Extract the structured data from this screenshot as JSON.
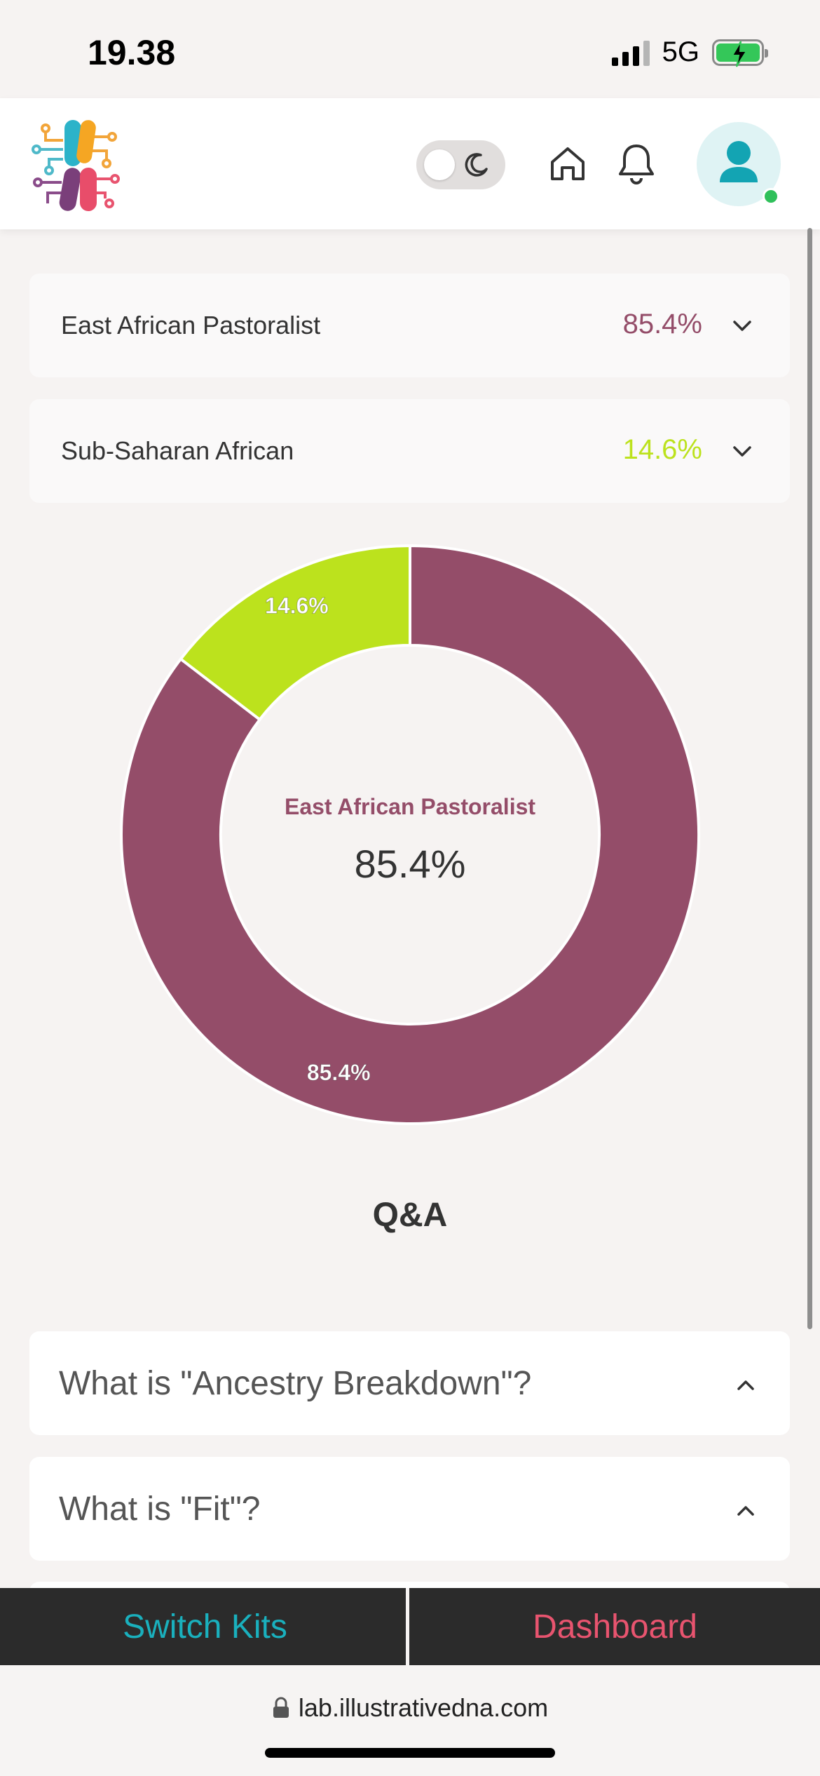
{
  "status_bar": {
    "time": "19.38",
    "network": "5G"
  },
  "header": {
    "logo": "illustrative-dna-logo",
    "theme_toggle": "dark-mode-toggle",
    "icons": [
      "home-icon",
      "bell-icon",
      "user-icon"
    ]
  },
  "ancestry": [
    {
      "name": "East African Pastoralist",
      "percent": "85.4%",
      "color": "#944d69"
    },
    {
      "name": "Sub-Saharan African",
      "percent": "14.6%",
      "color": "#bce21d"
    }
  ],
  "chart_data": {
    "type": "pie",
    "donut": true,
    "categories": [
      "East African Pastoralist",
      "Sub-Saharan African"
    ],
    "values": [
      85.4,
      14.6
    ],
    "slice_labels": [
      "85.4%",
      "14.6%"
    ],
    "colors": [
      "#944d69",
      "#bce21d"
    ],
    "center_label": "East African Pastoralist",
    "center_value": "85.4%"
  },
  "qa": {
    "title": "Q&A",
    "items": [
      {
        "question": "What is \"Ancestry Breakdown\"?"
      },
      {
        "question": "What is \"Fit\"?"
      }
    ]
  },
  "bottom_bar": {
    "switch_kits": "Switch Kits",
    "dashboard": "Dashboard",
    "switch_color": "#1ab0bd",
    "dashboard_color": "#e8546f"
  },
  "browser": {
    "url": "lab.illustrativedna.com"
  }
}
